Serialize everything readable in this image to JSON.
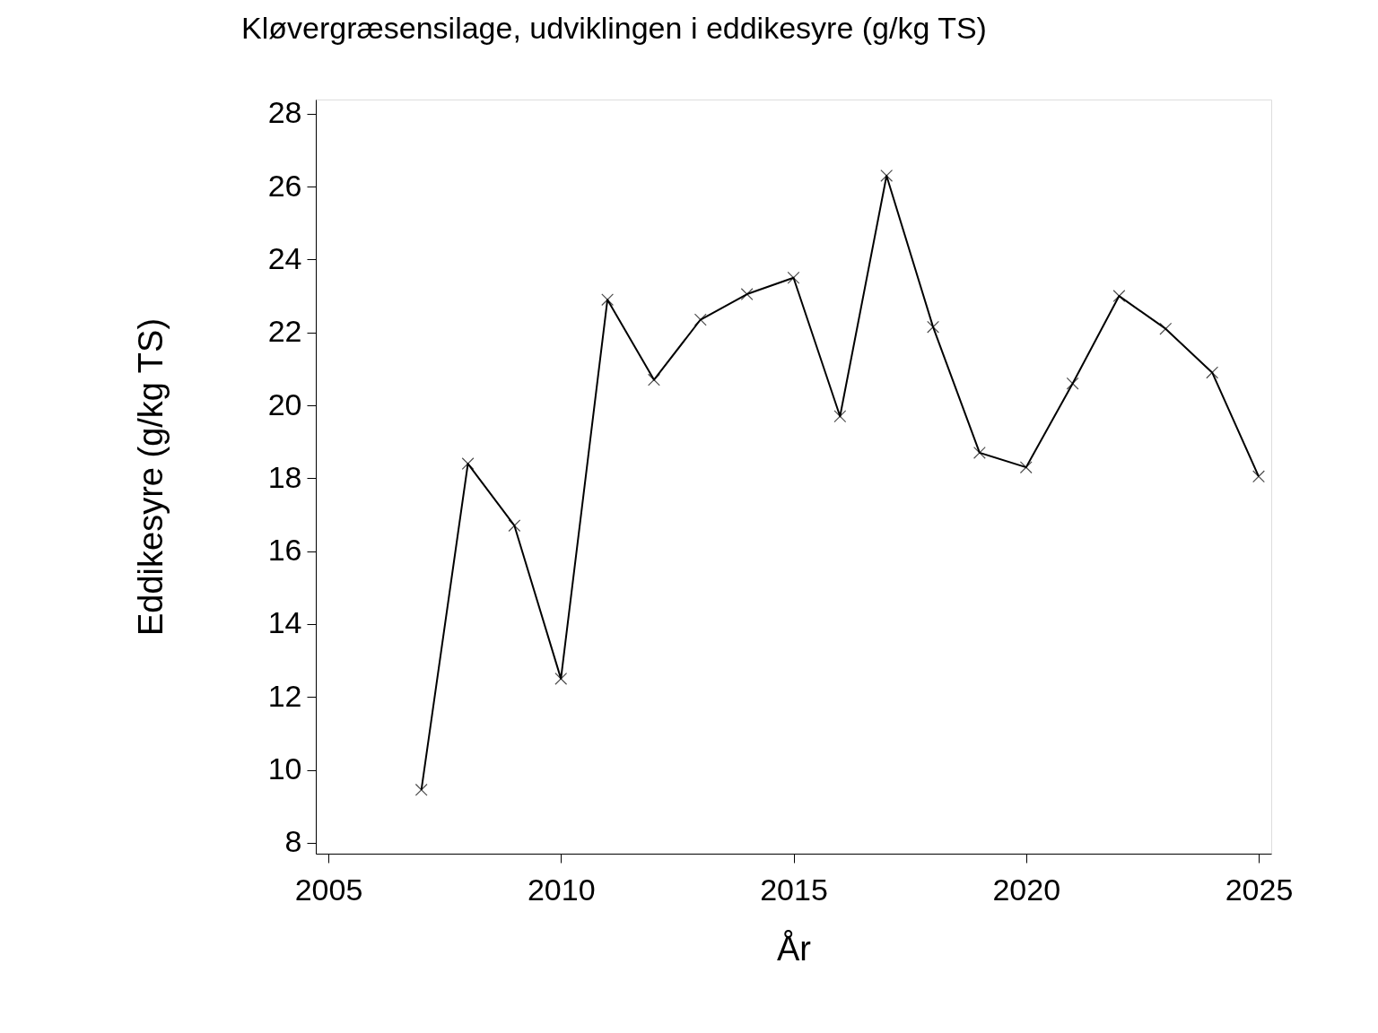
{
  "chart_data": {
    "type": "line",
    "title": "Kløvergræsensilage, udviklingen i eddikesyre (g/kg TS)",
    "xlabel": "År",
    "ylabel": "Eddikesyre (g/kg TS)",
    "x": [
      2007,
      2008,
      2009,
      2010,
      2011,
      2012,
      2013,
      2014,
      2015,
      2016,
      2017,
      2018,
      2019,
      2020,
      2021,
      2022,
      2023,
      2024,
      2025
    ],
    "series": [
      {
        "color": "#000000",
        "values": [
          9.45,
          18.4,
          16.7,
          12.5,
          22.9,
          20.7,
          22.35,
          23.05,
          23.5,
          19.7,
          26.3,
          22.15,
          18.7,
          18.3,
          20.6,
          23.0,
          22.1,
          20.9,
          18.05
        ]
      }
    ],
    "xlim": [
      2004.73,
      2025.27
    ],
    "xticks": [
      2005,
      2010,
      2015,
      2020,
      2025
    ],
    "ylim": [
      7.7,
      28.39
    ],
    "yticks": [
      8,
      10,
      12,
      14,
      16,
      18,
      20,
      22,
      24,
      26,
      28
    ],
    "grid": false,
    "legend": false,
    "marker": "cross",
    "line_style": "solid"
  }
}
